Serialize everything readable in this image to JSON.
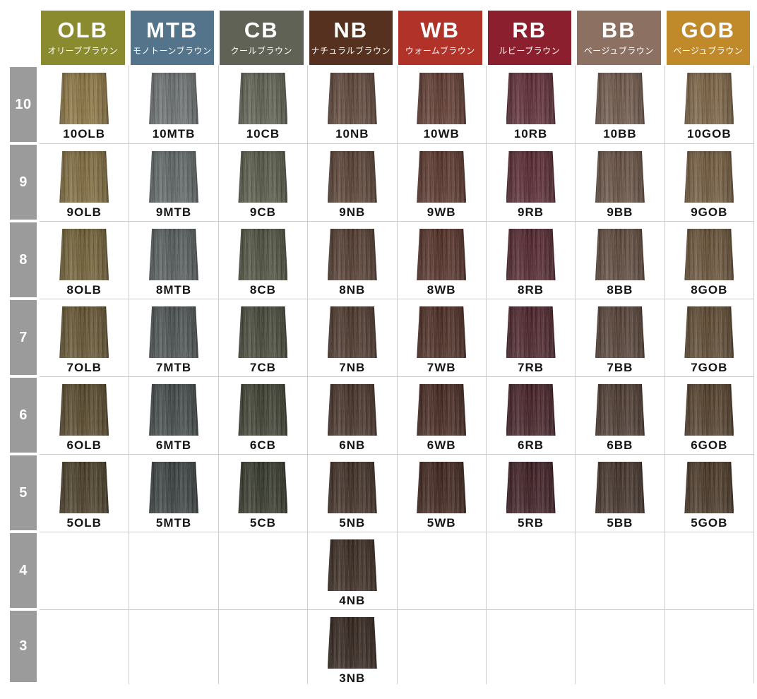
{
  "styles": {
    "grid_line_color": "#cccccc",
    "level_label_bg": "#9b9b9b",
    "header_text_color": "#ffffff",
    "swatch_label_color": "#141414"
  },
  "chart_data": {
    "type": "table",
    "columns": [
      {
        "code": "OLB",
        "name_jp": "オリーブブラウン",
        "header_color": "#8a8b2f"
      },
      {
        "code": "MTB",
        "name_jp": "モノトーンブラウン",
        "header_color": "#53748b"
      },
      {
        "code": "CB",
        "name_jp": "クールブラウン",
        "header_color": "#5f6254"
      },
      {
        "code": "NB",
        "name_jp": "ナチュラルブラウン",
        "header_color": "#56311f"
      },
      {
        "code": "WB",
        "name_jp": "ウォームブラウン",
        "header_color": "#b03228"
      },
      {
        "code": "RB",
        "name_jp": "ルビーブラウン",
        "header_color": "#8c1f2d"
      },
      {
        "code": "BB",
        "name_jp": "ベージュブラウン",
        "header_color": "#8c7163"
      },
      {
        "code": "GOB",
        "name_jp": "ベージュブラウン",
        "header_color": "#c08a2b"
      }
    ],
    "levels": [
      "10",
      "9",
      "8",
      "7",
      "6",
      "5",
      "4",
      "3"
    ],
    "swatches": [
      {
        "level": "10",
        "code": "OLB",
        "label": "10OLB",
        "color": "#8b7442"
      },
      {
        "level": "9",
        "code": "OLB",
        "label": "9OLB",
        "color": "#7f6b3e"
      },
      {
        "level": "8",
        "code": "OLB",
        "label": "8OLB",
        "color": "#716036"
      },
      {
        "level": "7",
        "code": "OLB",
        "label": "7OLB",
        "color": "#645431"
      },
      {
        "level": "6",
        "code": "OLB",
        "label": "6OLB",
        "color": "#57482b"
      },
      {
        "level": "5",
        "code": "OLB",
        "label": "5OLB",
        "color": "#493d27"
      },
      {
        "level": "10",
        "code": "MTB",
        "label": "10MTB",
        "color": "#6b7070"
      },
      {
        "level": "9",
        "code": "MTB",
        "label": "9MTB",
        "color": "#606666"
      },
      {
        "level": "8",
        "code": "MTB",
        "label": "8MTB",
        "color": "#565c5c"
      },
      {
        "level": "7",
        "code": "MTB",
        "label": "7MTB",
        "color": "#4c5252"
      },
      {
        "level": "6",
        "code": "MTB",
        "label": "6MTB",
        "color": "#434949"
      },
      {
        "level": "5",
        "code": "MTB",
        "label": "5MTB",
        "color": "#3b4141"
      },
      {
        "level": "10",
        "code": "CB",
        "label": "10CB",
        "color": "#5e6051"
      },
      {
        "level": "9",
        "code": "CB",
        "label": "9CB",
        "color": "#565947"
      },
      {
        "level": "8",
        "code": "CB",
        "label": "8CB",
        "color": "#4e513f"
      },
      {
        "level": "7",
        "code": "CB",
        "label": "7CB",
        "color": "#454838"
      },
      {
        "level": "6",
        "code": "CB",
        "label": "6CB",
        "color": "#3d4031"
      },
      {
        "level": "5",
        "code": "CB",
        "label": "5CB",
        "color": "#35382b"
      },
      {
        "level": "10",
        "code": "NB",
        "label": "10NB",
        "color": "#5e4538"
      },
      {
        "level": "9",
        "code": "NB",
        "label": "9NB",
        "color": "#584033"
      },
      {
        "level": "8",
        "code": "NB",
        "label": "8NB",
        "color": "#523b2f"
      },
      {
        "level": "7",
        "code": "NB",
        "label": "7NB",
        "color": "#4c372c"
      },
      {
        "level": "6",
        "code": "NB",
        "label": "6NB",
        "color": "#463228"
      },
      {
        "level": "5",
        "code": "NB",
        "label": "5NB",
        "color": "#3f2e24"
      },
      {
        "level": "4",
        "code": "NB",
        "label": "4NB",
        "color": "#392a20"
      },
      {
        "level": "3",
        "code": "NB",
        "label": "3NB",
        "color": "#33251d"
      },
      {
        "level": "10",
        "code": "WB",
        "label": "10WB",
        "color": "#5f3a30"
      },
      {
        "level": "9",
        "code": "WB",
        "label": "9WB",
        "color": "#59352b"
      },
      {
        "level": "8",
        "code": "WB",
        "label": "8WB",
        "color": "#533027"
      },
      {
        "level": "7",
        "code": "WB",
        "label": "7WB",
        "color": "#4c2c23"
      },
      {
        "level": "6",
        "code": "WB",
        "label": "6WB",
        "color": "#462820"
      },
      {
        "level": "5",
        "code": "WB",
        "label": "5WB",
        "color": "#3f241c"
      },
      {
        "level": "10",
        "code": "RB",
        "label": "10RB",
        "color": "#5e2c35"
      },
      {
        "level": "9",
        "code": "RB",
        "label": "9RB",
        "color": "#582931"
      },
      {
        "level": "8",
        "code": "RB",
        "label": "8RB",
        "color": "#52262d"
      },
      {
        "level": "7",
        "code": "RB",
        "label": "7RB",
        "color": "#4b232a"
      },
      {
        "level": "6",
        "code": "RB",
        "label": "6RB",
        "color": "#442026"
      },
      {
        "level": "5",
        "code": "RB",
        "label": "5RB",
        "color": "#3d1d22"
      },
      {
        "level": "10",
        "code": "BB",
        "label": "10BB",
        "color": "#6e5749"
      },
      {
        "level": "9",
        "code": "BB",
        "label": "9BB",
        "color": "#665042"
      },
      {
        "level": "8",
        "code": "BB",
        "label": "8BB",
        "color": "#5e493c"
      },
      {
        "level": "7",
        "code": "BB",
        "label": "7BB",
        "color": "#554136"
      },
      {
        "level": "6",
        "code": "BB",
        "label": "6BB",
        "color": "#4c3a30"
      },
      {
        "level": "5",
        "code": "BB",
        "label": "5BB",
        "color": "#43332a"
      },
      {
        "level": "10",
        "code": "GOB",
        "label": "10GOB",
        "color": "#7a6243"
      },
      {
        "level": "9",
        "code": "GOB",
        "label": "9GOB",
        "color": "#715a3d"
      },
      {
        "level": "8",
        "code": "GOB",
        "label": "8GOB",
        "color": "#675137"
      },
      {
        "level": "7",
        "code": "GOB",
        "label": "7GOB",
        "color": "#5d4931"
      },
      {
        "level": "6",
        "code": "GOB",
        "label": "6GOB",
        "color": "#533f2b"
      },
      {
        "level": "5",
        "code": "GOB",
        "label": "5GOB",
        "color": "#493726"
      }
    ]
  }
}
